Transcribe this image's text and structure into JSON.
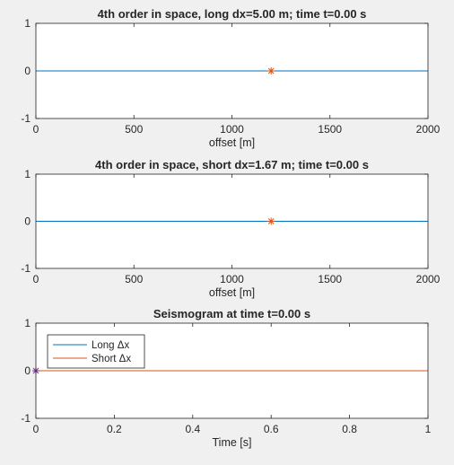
{
  "chart_data": [
    {
      "type": "line",
      "title": "4th order in space, long dx=5.00 m; time t=0.00 s",
      "xlabel": "offset [m]",
      "ylabel": "",
      "xlim": [
        0,
        2000
      ],
      "ylim": [
        -1,
        1
      ],
      "xticks": [
        "0",
        "500",
        "1000",
        "1500",
        "2000"
      ],
      "yticks": [
        "-1",
        "0",
        "1"
      ],
      "series": [
        {
          "color": "#0072bd",
          "x": [
            0,
            2000
          ],
          "y": [
            0,
            0
          ]
        }
      ],
      "markers": [
        {
          "symbol": "asterisk",
          "color": "#d95319",
          "x": 1200,
          "y": 0
        }
      ]
    },
    {
      "type": "line",
      "title": "4th order in space, short dx=1.67 m; time t=0.00 s",
      "xlabel": "offset [m]",
      "ylabel": "",
      "xlim": [
        0,
        2000
      ],
      "ylim": [
        -1,
        1
      ],
      "xticks": [
        "0",
        "500",
        "1000",
        "1500",
        "2000"
      ],
      "yticks": [
        "-1",
        "0",
        "1"
      ],
      "series": [
        {
          "color": "#0072bd",
          "x": [
            0,
            2000
          ],
          "y": [
            0,
            0
          ]
        }
      ],
      "markers": [
        {
          "symbol": "asterisk",
          "color": "#d95319",
          "x": 1200,
          "y": 0
        }
      ]
    },
    {
      "type": "line",
      "title": "Seismogram at time t=0.00 s",
      "xlabel": "Time [s]",
      "ylabel": "",
      "xlim": [
        0,
        1
      ],
      "ylim": [
        -1,
        1
      ],
      "xticks": [
        "0",
        "0.2",
        "0.4",
        "0.6",
        "0.8",
        "1"
      ],
      "yticks": [
        "-1",
        "0",
        "1"
      ],
      "legend": "top-left",
      "series": [
        {
          "name": "Long Δx",
          "color": "#0072bd",
          "x": [
            0,
            1
          ],
          "y": [
            0,
            0
          ]
        },
        {
          "name": "Short Δx",
          "color": "#d95319",
          "x": [
            0,
            1
          ],
          "y": [
            0,
            0
          ]
        }
      ],
      "markers": [
        {
          "symbol": "asterisk",
          "color": "#7e2f8e",
          "x": 0,
          "y": 0
        }
      ]
    }
  ]
}
